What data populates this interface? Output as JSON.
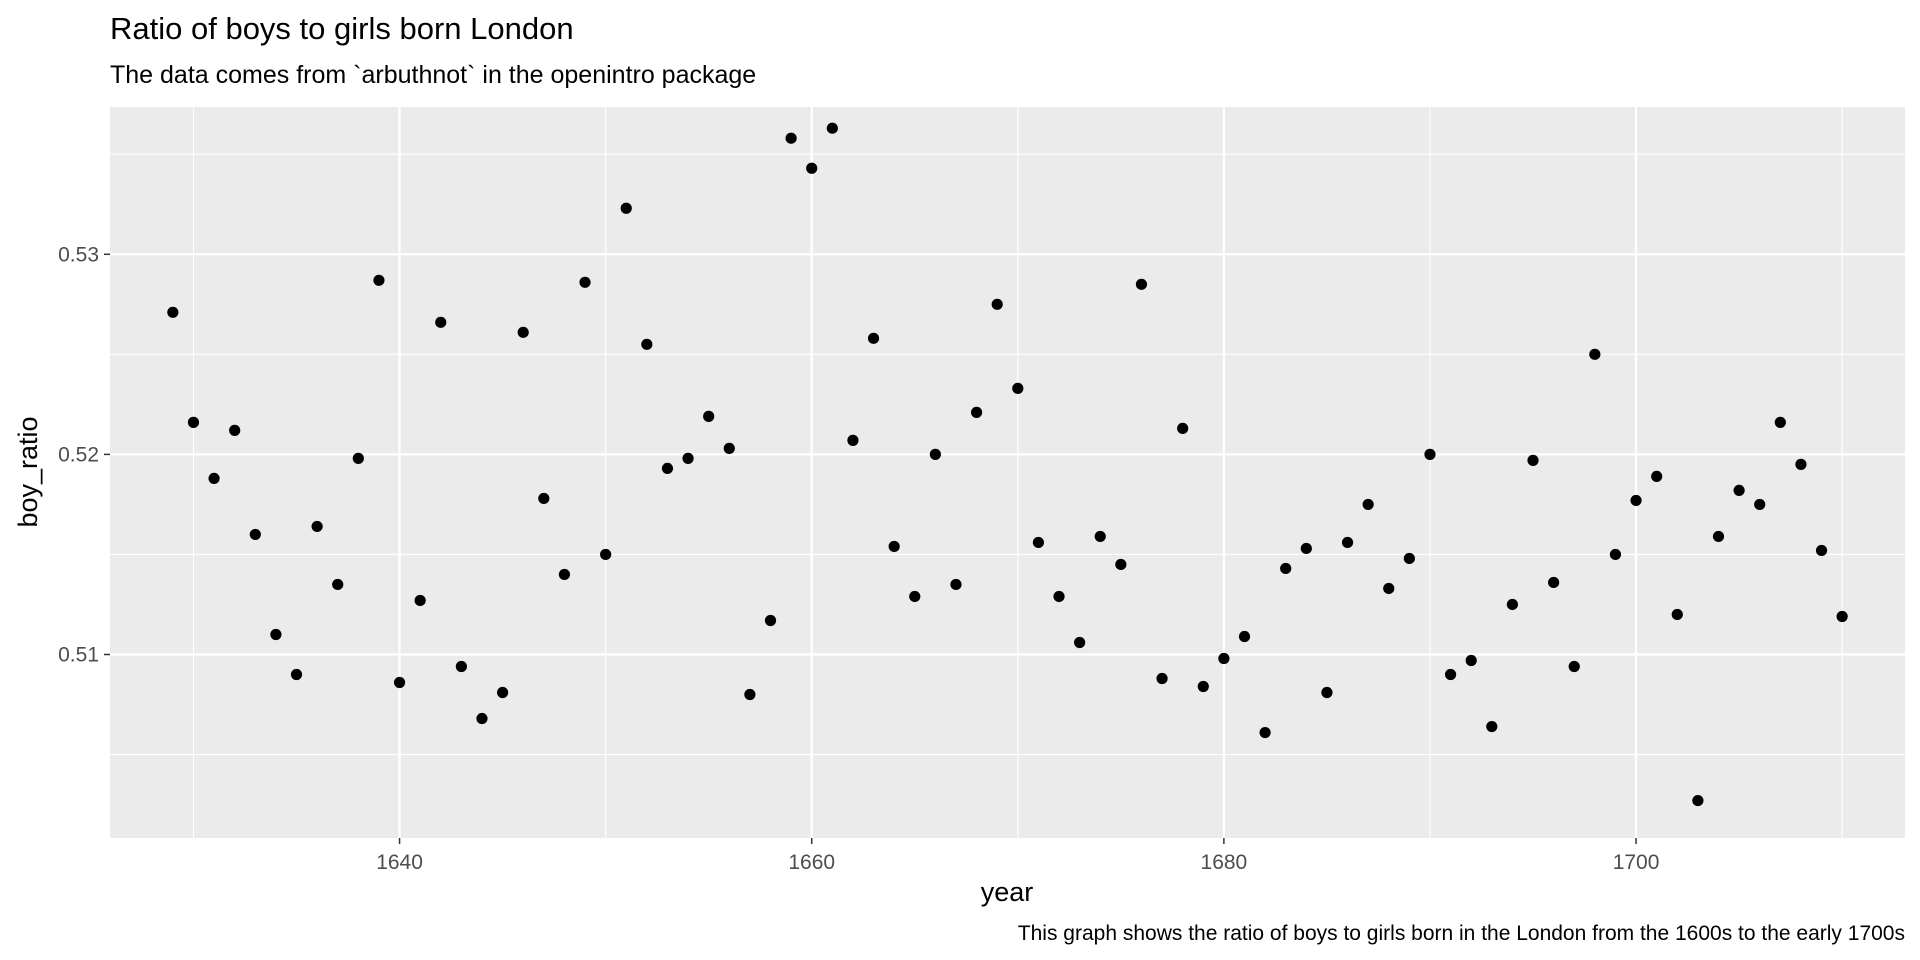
{
  "chart_data": {
    "type": "scatter",
    "title": "Ratio of boys to girls born London",
    "subtitle": "The data comes from `arbuthnot` in the openintro package",
    "caption": "This graph shows the ratio of boys to girls born in the London from the 1600s to the early 1700s",
    "xlabel": "year",
    "ylabel": "boy_ratio",
    "xlim": [
      1625.95,
      1713.05
    ],
    "ylim": [
      0.50083,
      0.53736
    ],
    "x_major_ticks": [
      1640,
      1660,
      1680,
      1700
    ],
    "x_tick_labels": [
      "1640",
      "1660",
      "1680",
      "1700"
    ],
    "y_major_ticks": [
      0.51,
      0.52,
      0.53
    ],
    "y_tick_labels": [
      "0.51",
      "0.52",
      "0.53"
    ],
    "grid": true,
    "colors": {
      "panel": "#ebebeb",
      "grid": "#ffffff",
      "point": "#000000"
    },
    "points": [
      {
        "x": 1629,
        "y": 0.5271
      },
      {
        "x": 1630,
        "y": 0.5216
      },
      {
        "x": 1631,
        "y": 0.5188
      },
      {
        "x": 1632,
        "y": 0.5212
      },
      {
        "x": 1633,
        "y": 0.516
      },
      {
        "x": 1634,
        "y": 0.511
      },
      {
        "x": 1635,
        "y": 0.509
      },
      {
        "x": 1636,
        "y": 0.5164
      },
      {
        "x": 1637,
        "y": 0.5135
      },
      {
        "x": 1638,
        "y": 0.5198
      },
      {
        "x": 1639,
        "y": 0.5287
      },
      {
        "x": 1640,
        "y": 0.5086
      },
      {
        "x": 1641,
        "y": 0.5127
      },
      {
        "x": 1642,
        "y": 0.5266
      },
      {
        "x": 1643,
        "y": 0.5094
      },
      {
        "x": 1644,
        "y": 0.5068
      },
      {
        "x": 1645,
        "y": 0.5081
      },
      {
        "x": 1646,
        "y": 0.5261
      },
      {
        "x": 1647,
        "y": 0.5178
      },
      {
        "x": 1648,
        "y": 0.514
      },
      {
        "x": 1649,
        "y": 0.5286
      },
      {
        "x": 1650,
        "y": 0.515
      },
      {
        "x": 1651,
        "y": 0.5323
      },
      {
        "x": 1652,
        "y": 0.5255
      },
      {
        "x": 1653,
        "y": 0.5193
      },
      {
        "x": 1654,
        "y": 0.5198
      },
      {
        "x": 1655,
        "y": 0.5219
      },
      {
        "x": 1656,
        "y": 0.5203
      },
      {
        "x": 1657,
        "y": 0.508
      },
      {
        "x": 1658,
        "y": 0.5117
      },
      {
        "x": 1659,
        "y": 0.5358
      },
      {
        "x": 1660,
        "y": 0.5343
      },
      {
        "x": 1661,
        "y": 0.5363
      },
      {
        "x": 1662,
        "y": 0.5207
      },
      {
        "x": 1663,
        "y": 0.5258
      },
      {
        "x": 1664,
        "y": 0.5154
      },
      {
        "x": 1665,
        "y": 0.5129
      },
      {
        "x": 1666,
        "y": 0.52
      },
      {
        "x": 1667,
        "y": 0.5135
      },
      {
        "x": 1668,
        "y": 0.5221
      },
      {
        "x": 1669,
        "y": 0.5275
      },
      {
        "x": 1670,
        "y": 0.5233
      },
      {
        "x": 1671,
        "y": 0.5156
      },
      {
        "x": 1672,
        "y": 0.5129
      },
      {
        "x": 1673,
        "y": 0.5106
      },
      {
        "x": 1674,
        "y": 0.5159
      },
      {
        "x": 1675,
        "y": 0.5145
      },
      {
        "x": 1676,
        "y": 0.5285
      },
      {
        "x": 1677,
        "y": 0.5088
      },
      {
        "x": 1678,
        "y": 0.5213
      },
      {
        "x": 1679,
        "y": 0.5084
      },
      {
        "x": 1680,
        "y": 0.5098
      },
      {
        "x": 1681,
        "y": 0.5109
      },
      {
        "x": 1682,
        "y": 0.5061
      },
      {
        "x": 1683,
        "y": 0.5143
      },
      {
        "x": 1684,
        "y": 0.5153
      },
      {
        "x": 1685,
        "y": 0.5081
      },
      {
        "x": 1686,
        "y": 0.5156
      },
      {
        "x": 1687,
        "y": 0.5175
      },
      {
        "x": 1688,
        "y": 0.5133
      },
      {
        "x": 1689,
        "y": 0.5148
      },
      {
        "x": 1690,
        "y": 0.52
      },
      {
        "x": 1691,
        "y": 0.509
      },
      {
        "x": 1692,
        "y": 0.5097
      },
      {
        "x": 1693,
        "y": 0.5064
      },
      {
        "x": 1694,
        "y": 0.5125
      },
      {
        "x": 1695,
        "y": 0.5197
      },
      {
        "x": 1696,
        "y": 0.5136
      },
      {
        "x": 1697,
        "y": 0.5094
      },
      {
        "x": 1698,
        "y": 0.525
      },
      {
        "x": 1699,
        "y": 0.515
      },
      {
        "x": 1700,
        "y": 0.5177
      },
      {
        "x": 1701,
        "y": 0.5189
      },
      {
        "x": 1702,
        "y": 0.512
      },
      {
        "x": 1703,
        "y": 0.5027
      },
      {
        "x": 1704,
        "y": 0.5159
      },
      {
        "x": 1705,
        "y": 0.5182
      },
      {
        "x": 1706,
        "y": 0.5175
      },
      {
        "x": 1707,
        "y": 0.5216
      },
      {
        "x": 1708,
        "y": 0.5195
      },
      {
        "x": 1709,
        "y": 0.5152
      },
      {
        "x": 1710,
        "y": 0.5119
      }
    ]
  }
}
